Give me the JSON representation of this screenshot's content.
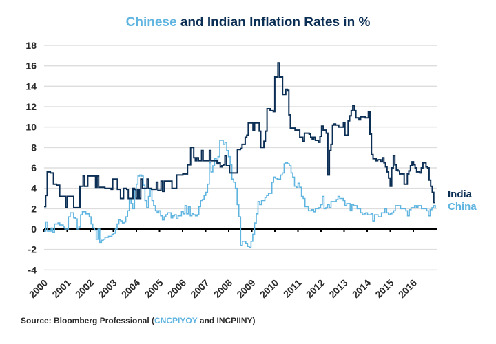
{
  "title": {
    "part1": "Chinese",
    "part2": " and Indian Inflation Rates in %"
  },
  "source": {
    "prefix": "Source: Bloomberg Professional (",
    "code1": "CNCPIYOY",
    "middle": " and INCPIINY)"
  },
  "colors": {
    "india": "#0b2e54",
    "china": "#5fb4e0",
    "grid": "#dddddd",
    "zero_line": "#000000"
  },
  "chart_data": {
    "type": "line",
    "title": "Chinese and Indian Inflation Rates in %",
    "xlabel": "",
    "ylabel": "",
    "ylim": [
      -4,
      18
    ],
    "yticks": [
      -4,
      -2,
      0,
      2,
      4,
      6,
      8,
      10,
      12,
      14,
      16,
      18
    ],
    "xlim": [
      2000,
      2017
    ],
    "xticks": [
      "2000",
      "2001",
      "2002",
      "2003",
      "2004",
      "2005",
      "2006",
      "2007",
      "2008",
      "2009",
      "2010",
      "2011",
      "2012",
      "2013",
      "2014",
      "2015",
      "2016"
    ],
    "grid": true,
    "legend": "right-end",
    "x_start": 2000,
    "x_step_months": 1,
    "series": [
      {
        "name": "India",
        "values": [
          2.2,
          3.3,
          5.6,
          5.6,
          5.5,
          5.5,
          4.4,
          4.4,
          4.3,
          4.3,
          3.2,
          3.2,
          3.2,
          3.2,
          2.1,
          3.2,
          3.2,
          3.2,
          3.2,
          2.1,
          2.1,
          2.1,
          2.1,
          4.2,
          4.2,
          5.2,
          4.2,
          4.2,
          5.2,
          5.2,
          5.2,
          5.2,
          5.2,
          4.1,
          5.2,
          4.1,
          4.1,
          4.1,
          4.1,
          4.0,
          4.0,
          4.0,
          4.0,
          3.9,
          4.9,
          4.9,
          4.9,
          3.9,
          3.9,
          3.0,
          3.0,
          4.0,
          4.0,
          3.9,
          3.0,
          3.0,
          3.0,
          4.0,
          3.9,
          3.0,
          3.9,
          3.0,
          4.9,
          4.0,
          4.0,
          4.0,
          4.9,
          4.0,
          4.0,
          3.9,
          3.9,
          3.9,
          4.6,
          3.8,
          3.8,
          4.7,
          3.7,
          4.7,
          4.7,
          4.7,
          4.7,
          4.7,
          4.0,
          4.0,
          4.0,
          5.3,
          5.3,
          5.3,
          5.3,
          5.4,
          5.4,
          5.4,
          6.3,
          6.3,
          8.0,
          8.0,
          7.0,
          6.7,
          7.0,
          6.7,
          6.7,
          7.7,
          6.7,
          6.7,
          6.7,
          6.7,
          7.7,
          6.7,
          6.7,
          6.7,
          6.7,
          6.4,
          6.5,
          6.1,
          6.2,
          6.3,
          7.2,
          6.2,
          6.2,
          5.5,
          5.5,
          5.5,
          5.5,
          5.5,
          7.8,
          7.8,
          7.9,
          8.3,
          8.3,
          9.0,
          9.2,
          10.4,
          10.4,
          10.4,
          9.7,
          10.4,
          10.4,
          10.4,
          9.6,
          8.0,
          8.0,
          8.6,
          9.6,
          11.8,
          11.8,
          11.6,
          11.6,
          11.5,
          14.9,
          14.9,
          16.3,
          14.9,
          14.9,
          13.2,
          13.2,
          13.7,
          13.6,
          11.2,
          9.9,
          9.9,
          9.9,
          9.7,
          9.7,
          9.7,
          9.0,
          9.0,
          8.6,
          9.4,
          9.4,
          9.4,
          9.3,
          9.0,
          8.8,
          9.0,
          8.7,
          8.7,
          8.5,
          9.1,
          10.1,
          9.7,
          9.7,
          9.4,
          5.3,
          7.7,
          8.3,
          10.2,
          10.3,
          10.2,
          10.2,
          10.0,
          10.0,
          10.0,
          10.4,
          9.2,
          9.2,
          10.6,
          11.1,
          11.6,
          12.1,
          11.6,
          10.9,
          10.9,
          10.7,
          11.0,
          11.0,
          11.0,
          10.9,
          10.9,
          11.5,
          9.3,
          7.3,
          6.9,
          6.9,
          6.7,
          6.8,
          6.8,
          6.6,
          7.0,
          6.5,
          6.1,
          5.6,
          5.0,
          4.2,
          6.0,
          7.2,
          6.3,
          5.8,
          5.7,
          5.4,
          5.4,
          5.4,
          4.4,
          4.4,
          5.4,
          5.7,
          6.2,
          6.6,
          6.3,
          6.0,
          5.6,
          5.6,
          5.5,
          6.0,
          6.5,
          6.5,
          6.1,
          6.0,
          4.8,
          4.2,
          3.6,
          2.6,
          2.6
        ]
      },
      {
        "name": "China",
        "values": [
          -0.2,
          0.7,
          -0.2,
          -0.2,
          0.1,
          -0.3,
          0.5,
          0.5,
          0.6,
          0.4,
          0.4,
          0.2,
          0.0,
          0.0,
          1.2,
          1.6,
          1.6,
          1.1,
          1.0,
          0.0,
          0.2,
          1.4,
          1.7,
          1.7,
          1.5,
          1.5,
          1.2,
          0.5,
          0.1,
          -0.1,
          -1.0,
          0.0,
          -1.3,
          -1.1,
          -1.0,
          -0.8,
          -0.8,
          -0.7,
          -0.7,
          -0.5,
          -0.4,
          0.0,
          0.5,
          0.9,
          0.8,
          0.6,
          0.7,
          1.2,
          1.8,
          3.0,
          2.5,
          2.0,
          3.8,
          4.4,
          5.2,
          5.3,
          5.2,
          4.3,
          2.8,
          2.1,
          3.2,
          3.9,
          2.8,
          2.3,
          1.8,
          1.6,
          1.8,
          1.3,
          0.9,
          1.2,
          1.4,
          1.6,
          1.6,
          1.1,
          1.3,
          1.4,
          1.0,
          1.3,
          1.3,
          1.7,
          1.5,
          2.3,
          1.5,
          2.2,
          1.3,
          1.5,
          1.4,
          1.3,
          1.4,
          2.2,
          2.8,
          2.9,
          3.3,
          3.6,
          4.4,
          6.5,
          5.6,
          6.2,
          6.9,
          6.5,
          7.1,
          8.7,
          8.7,
          8.3,
          8.5,
          7.7,
          7.1,
          6.3,
          4.9,
          4.6,
          4.0,
          2.4,
          1.2,
          -1.6,
          -1.2,
          -1.2,
          -1.4,
          -1.7,
          -1.8,
          -1.2,
          -0.5,
          0.6,
          1.5,
          2.7,
          2.4,
          2.8,
          2.8,
          3.1,
          3.3,
          3.5,
          3.5,
          4.6,
          5.1,
          5.0,
          4.9,
          4.9,
          5.3,
          5.5,
          6.4,
          6.5,
          6.4,
          6.2,
          5.5,
          5.1,
          4.2,
          4.1,
          4.5,
          4.1,
          3.2,
          3.0,
          2.2,
          2.2,
          1.8,
          1.8,
          1.9,
          1.7,
          2.0,
          2.0,
          2.1,
          2.4,
          3.2,
          2.0,
          2.1,
          2.4,
          2.1,
          2.7,
          2.7,
          2.7,
          2.9,
          3.2,
          3.0,
          3.0,
          2.8,
          2.3,
          2.5,
          2.5,
          1.8,
          2.4,
          2.3,
          2.3,
          2.0,
          2.0,
          1.6,
          1.4,
          1.5,
          1.6,
          1.4,
          1.4,
          1.5,
          0.8,
          1.4,
          1.4,
          1.2,
          1.2,
          1.6,
          1.6,
          2.0,
          1.6,
          1.4,
          1.5,
          1.6,
          1.8,
          2.3,
          2.3,
          2.3,
          2.0,
          2.0,
          2.0,
          1.8,
          1.3,
          1.9,
          2.1,
          2.1,
          2.3,
          2.1,
          2.3,
          2.3,
          2.0,
          2.0,
          2.0,
          1.8,
          1.3,
          1.9,
          2.1,
          2.3,
          2.1
        ]
      }
    ]
  }
}
